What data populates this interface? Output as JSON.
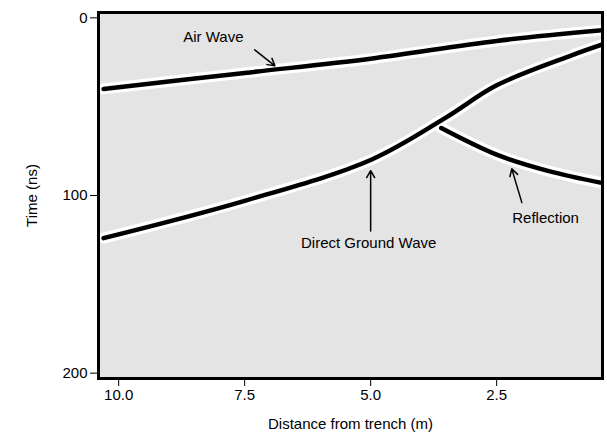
{
  "chart_data": {
    "type": "line",
    "xlabel": "Distance from trench (m)",
    "ylabel": "Time (ns)",
    "xlim": [
      10.4,
      0.4
    ],
    "ylim": [
      -3,
      203
    ],
    "xticks": [
      {
        "value": 10,
        "label": "10.0"
      },
      {
        "value": 7.5,
        "label": "7.5"
      },
      {
        "value": 5,
        "label": "5.0"
      },
      {
        "value": 2.5,
        "label": "2.5"
      }
    ],
    "yticks": [
      0,
      100,
      200
    ],
    "series": [
      {
        "name": "Air Wave",
        "color": "#000000",
        "x": [
          10.3,
          7.5,
          5,
          2.5,
          0.4
        ],
        "values": [
          40,
          31,
          23,
          13,
          7
        ]
      },
      {
        "name": "Direct Ground Wave",
        "color": "#000000",
        "x": [
          10.3,
          7.5,
          5,
          3.5,
          2.5,
          1,
          0.4
        ],
        "values": [
          124,
          103,
          80,
          56,
          38,
          21,
          15
        ]
      },
      {
        "name": "Reflection",
        "color": "#000000",
        "x": [
          3.6,
          2.5,
          1.5,
          0.4
        ],
        "values": [
          62,
          77,
          86,
          93
        ]
      }
    ]
  }
}
